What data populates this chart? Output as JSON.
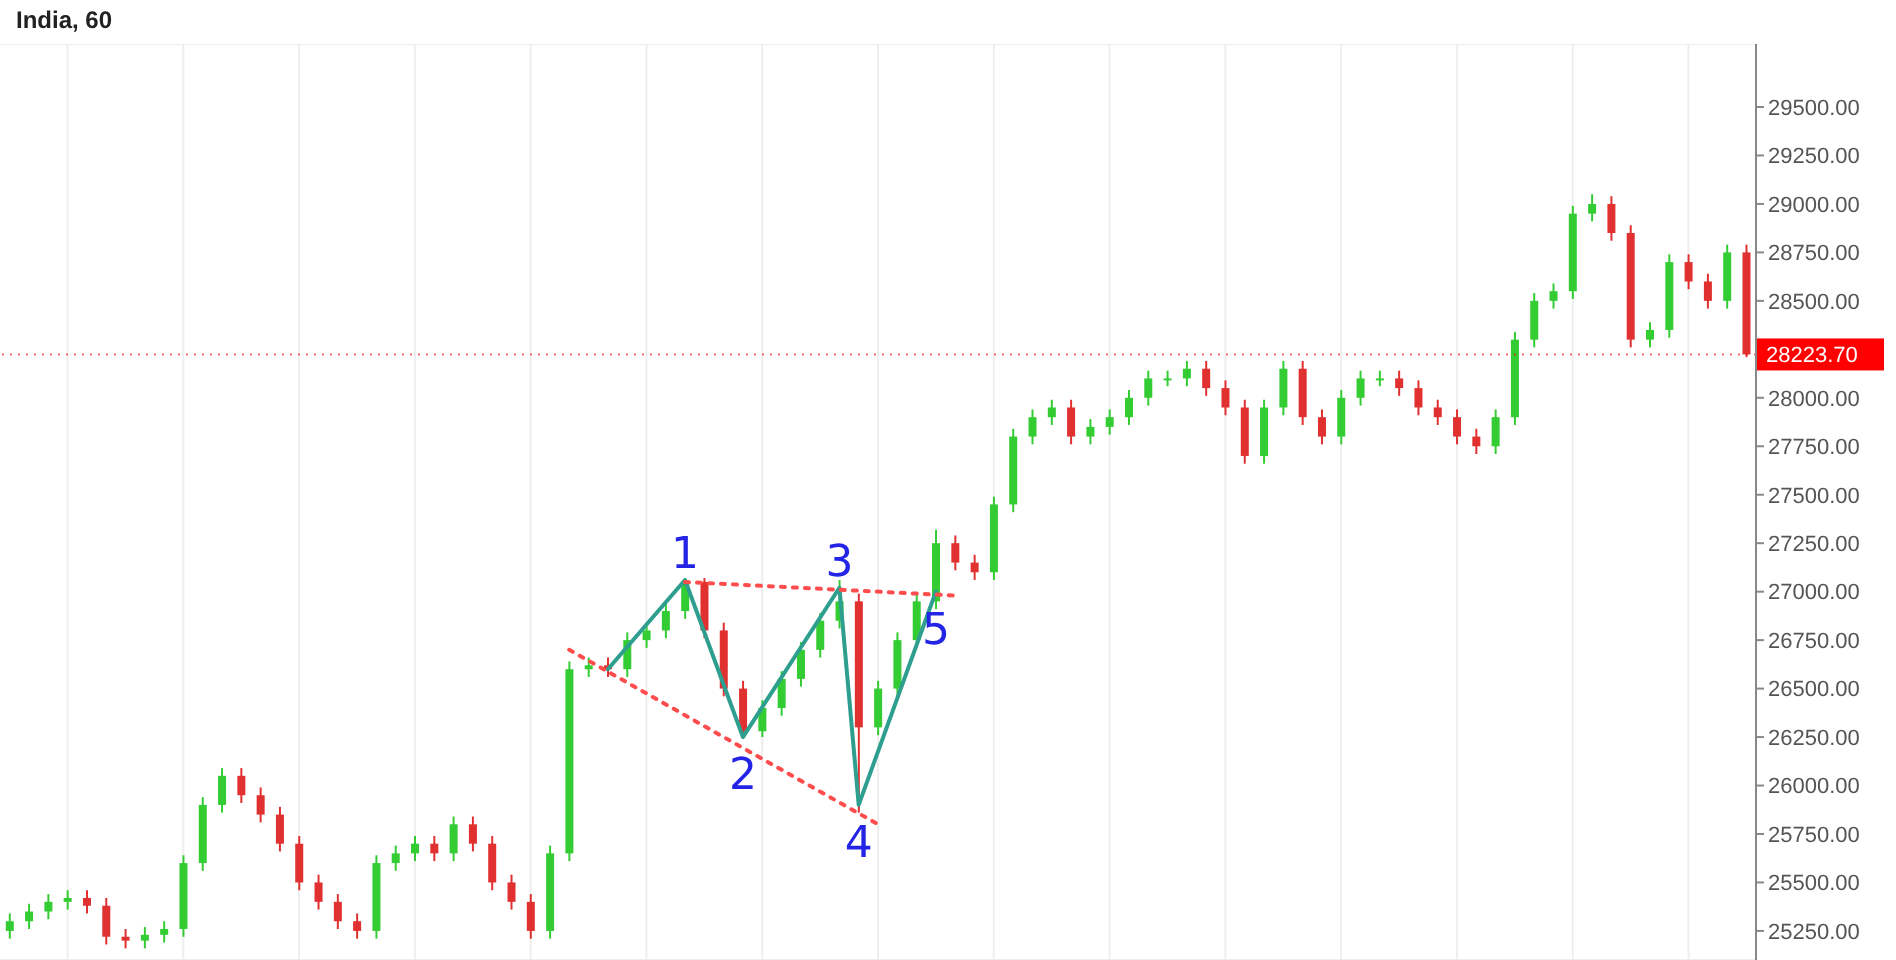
{
  "chart_data": {
    "type": "candlestick",
    "title": "India, 60",
    "categories": [
      null,
      null,
      null,
      null,
      null,
      null,
      null,
      null,
      null,
      null,
      null,
      null,
      null,
      null,
      null,
      null,
      null,
      null,
      null,
      null,
      null,
      null,
      null,
      null,
      null,
      null,
      null,
      null,
      null,
      null,
      null,
      null,
      null,
      null,
      null,
      null,
      null,
      null,
      null,
      null,
      null,
      null,
      null,
      null,
      null,
      null,
      null,
      null,
      null,
      null,
      null,
      null,
      null,
      null,
      null,
      null,
      null,
      null,
      null,
      null,
      null,
      null,
      null,
      null,
      null,
      null,
      null,
      null,
      null,
      null,
      null,
      null,
      null,
      null,
      null,
      null,
      null,
      null,
      null,
      null,
      null,
      null,
      null,
      null,
      null,
      null,
      null,
      null,
      null,
      null,
      null
    ],
    "ohlc": [
      [
        25250,
        25340,
        25210,
        25300
      ],
      [
        25300,
        25390,
        25260,
        25350
      ],
      [
        25350,
        25440,
        25310,
        25400
      ],
      [
        25400,
        25460,
        25360,
        25420
      ],
      [
        25420,
        25460,
        25340,
        25380
      ],
      [
        25380,
        25420,
        25180,
        25220
      ],
      [
        25220,
        25260,
        25160,
        25200
      ],
      [
        25200,
        25270,
        25160,
        25230
      ],
      [
        25230,
        25300,
        25190,
        25260
      ],
      [
        25260,
        25640,
        25220,
        25600
      ],
      [
        25600,
        25940,
        25560,
        25900
      ],
      [
        25900,
        26090,
        25860,
        26050
      ],
      [
        26050,
        26090,
        25910,
        25950
      ],
      [
        25950,
        25990,
        25810,
        25850
      ],
      [
        25850,
        25890,
        25660,
        25700
      ],
      [
        25700,
        25740,
        25460,
        25500
      ],
      [
        25500,
        25540,
        25360,
        25400
      ],
      [
        25400,
        25440,
        25260,
        25300
      ],
      [
        25300,
        25340,
        25210,
        25250
      ],
      [
        25250,
        25640,
        25210,
        25600
      ],
      [
        25600,
        25690,
        25560,
        25650
      ],
      [
        25650,
        25740,
        25610,
        25700
      ],
      [
        25700,
        25740,
        25610,
        25650
      ],
      [
        25650,
        25840,
        25610,
        25800
      ],
      [
        25800,
        25840,
        25660,
        25700
      ],
      [
        25700,
        25740,
        25460,
        25500
      ],
      [
        25500,
        25540,
        25360,
        25400
      ],
      [
        25400,
        25440,
        25210,
        25250
      ],
      [
        25250,
        25690,
        25210,
        25650
      ],
      [
        25650,
        26640,
        25610,
        26600
      ],
      [
        26600,
        26660,
        26560,
        26620
      ],
      [
        26620,
        26660,
        26560,
        26600
      ],
      [
        26600,
        26790,
        26560,
        26750
      ],
      [
        26750,
        26840,
        26710,
        26800
      ],
      [
        26800,
        26940,
        26760,
        26900
      ],
      [
        26900,
        27070,
        26860,
        27050
      ],
      [
        27050,
        27070,
        26760,
        26800
      ],
      [
        26800,
        26840,
        26460,
        26500
      ],
      [
        26500,
        26540,
        26250,
        26280
      ],
      [
        26280,
        26440,
        26250,
        26400
      ],
      [
        26400,
        26590,
        26360,
        26550
      ],
      [
        26550,
        26740,
        26510,
        26700
      ],
      [
        26700,
        26890,
        26660,
        26850
      ],
      [
        26850,
        27060,
        26810,
        26950
      ],
      [
        26950,
        26990,
        25860,
        26300
      ],
      [
        26300,
        26540,
        26260,
        26500
      ],
      [
        26500,
        26790,
        26460,
        26750
      ],
      [
        26750,
        26990,
        26710,
        26950
      ],
      [
        26950,
        27320,
        26910,
        27250
      ],
      [
        27250,
        27290,
        27110,
        27150
      ],
      [
        27150,
        27190,
        27060,
        27100
      ],
      [
        27100,
        27490,
        27060,
        27450
      ],
      [
        27450,
        27840,
        27410,
        27800
      ],
      [
        27800,
        27940,
        27760,
        27900
      ],
      [
        27900,
        27990,
        27860,
        27950
      ],
      [
        27950,
        27990,
        27760,
        27800
      ],
      [
        27800,
        27890,
        27760,
        27850
      ],
      [
        27850,
        27940,
        27810,
        27900
      ],
      [
        27900,
        28040,
        27860,
        28000
      ],
      [
        28000,
        28140,
        27960,
        28100
      ],
      [
        28100,
        28140,
        28060,
        28100
      ],
      [
        28100,
        28190,
        28060,
        28150
      ],
      [
        28150,
        28190,
        28010,
        28050
      ],
      [
        28050,
        28090,
        27910,
        27950
      ],
      [
        27950,
        27990,
        27660,
        27700
      ],
      [
        27700,
        27990,
        27660,
        27950
      ],
      [
        27950,
        28190,
        27910,
        28150
      ],
      [
        28150,
        28190,
        27860,
        27900
      ],
      [
        27900,
        27940,
        27760,
        27800
      ],
      [
        27800,
        28040,
        27760,
        28000
      ],
      [
        28000,
        28140,
        27960,
        28100
      ],
      [
        28100,
        28140,
        28060,
        28100
      ],
      [
        28100,
        28140,
        28010,
        28050
      ],
      [
        28050,
        28090,
        27910,
        27950
      ],
      [
        27950,
        27990,
        27860,
        27900
      ],
      [
        27900,
        27940,
        27760,
        27800
      ],
      [
        27800,
        27840,
        27710,
        27750
      ],
      [
        27750,
        27940,
        27710,
        27900
      ],
      [
        27900,
        28340,
        27860,
        28300
      ],
      [
        28300,
        28540,
        28260,
        28500
      ],
      [
        28500,
        28590,
        28460,
        28550
      ],
      [
        28550,
        28990,
        28510,
        28950
      ],
      [
        28950,
        29050,
        28910,
        29000
      ],
      [
        29000,
        29040,
        28810,
        28850
      ],
      [
        28850,
        28890,
        28260,
        28300
      ],
      [
        28300,
        28390,
        28260,
        28350
      ],
      [
        28350,
        28740,
        28310,
        28700
      ],
      [
        28700,
        28740,
        28560,
        28600
      ],
      [
        28600,
        28640,
        28460,
        28500
      ],
      [
        28500,
        28790,
        28460,
        28750
      ],
      [
        28750,
        28790,
        28210,
        28223.7
      ]
    ],
    "series": [
      {
        "type": "line",
        "color": "#2e9e8e",
        "line_style": "solid",
        "values": [
          null,
          null,
          null,
          null,
          null,
          null,
          null,
          null,
          null,
          null,
          null,
          null,
          null,
          null,
          null,
          null,
          null,
          null,
          null,
          null,
          null,
          null,
          null,
          null,
          null,
          null,
          null,
          null,
          null,
          null,
          null,
          26600,
          null,
          null,
          null,
          27060,
          null,
          null,
          26250,
          null,
          null,
          null,
          null,
          27020,
          25900,
          null,
          null,
          null,
          27000,
          null,
          null,
          null,
          null,
          null,
          null,
          null,
          null,
          null,
          null,
          null,
          null,
          null,
          null,
          null,
          null,
          null,
          null,
          null,
          null,
          null,
          null,
          null,
          null,
          null,
          null,
          null,
          null,
          null,
          null,
          null,
          null,
          null,
          null,
          null,
          null,
          null,
          null,
          null,
          null,
          null,
          null
        ],
        "name": null
      },
      {
        "type": "line",
        "color": "#ff4d4d",
        "line_style": "dotted",
        "values": [
          null,
          null,
          null,
          null,
          null,
          null,
          null,
          null,
          null,
          null,
          null,
          null,
          null,
          null,
          null,
          null,
          null,
          null,
          null,
          null,
          null,
          null,
          null,
          null,
          null,
          null,
          null,
          null,
          null,
          null,
          null,
          null,
          null,
          null,
          null,
          27050,
          null,
          null,
          null,
          null,
          null,
          null,
          null,
          null,
          null,
          null,
          null,
          null,
          null,
          26980,
          null,
          null,
          null,
          null,
          null,
          null,
          null,
          null,
          null,
          null,
          null,
          null,
          null,
          null,
          null,
          null,
          null,
          null,
          null,
          null,
          null,
          null,
          null,
          null,
          null,
          null,
          null,
          null,
          null,
          null,
          null,
          null,
          null,
          null,
          null,
          null,
          null,
          null,
          null,
          null,
          null
        ]
      },
      {
        "type": "line",
        "color": "#ff4d4d",
        "line_style": "dotted",
        "values": [
          null,
          null,
          null,
          null,
          null,
          null,
          null,
          null,
          null,
          null,
          null,
          null,
          null,
          null,
          null,
          null,
          null,
          null,
          null,
          null,
          null,
          null,
          null,
          null,
          null,
          null,
          null,
          null,
          null,
          26700,
          null,
          null,
          null,
          null,
          null,
          null,
          null,
          null,
          null,
          null,
          null,
          null,
          null,
          null,
          null,
          25800,
          null,
          null,
          null,
          null,
          null,
          null,
          null,
          null,
          null,
          null,
          null,
          null,
          null,
          null,
          null,
          null,
          null,
          null,
          null,
          null,
          null,
          null,
          null,
          null,
          null,
          null,
          null,
          null,
          null,
          null,
          null,
          null,
          null,
          null,
          null,
          null,
          null,
          null,
          null,
          null,
          null,
          null,
          null,
          null,
          null
        ]
      }
    ],
    "ylim": [
      25100,
      29825
    ],
    "yticks": [
      {
        "value": 25250,
        "label": "25250.00"
      },
      {
        "value": 25500,
        "label": "25500.00"
      },
      {
        "value": 25750,
        "label": "25750.00"
      },
      {
        "value": 26000,
        "label": "26000.00"
      },
      {
        "value": 26250,
        "label": "26250.00"
      },
      {
        "value": 26500,
        "label": "26500.00"
      },
      {
        "value": 26750,
        "label": "26750.00"
      },
      {
        "value": 27000,
        "label": "27000.00"
      },
      {
        "value": 27250,
        "label": "27250.00"
      },
      {
        "value": 27500,
        "label": "27500.00"
      },
      {
        "value": 27750,
        "label": "27750.00"
      },
      {
        "value": 28000,
        "label": "28000.00"
      },
      {
        "value": 28500,
        "label": "28500.00"
      },
      {
        "value": 28750,
        "label": "28750.00"
      },
      {
        "value": 29000,
        "label": "29000.00"
      },
      {
        "value": 29250,
        "label": "29250.00"
      },
      {
        "value": 29500,
        "label": "29500.00"
      }
    ],
    "ref_lines": [
      {
        "axis": "y",
        "value": 28223.7,
        "label": "28223.70",
        "color": "#ff0000"
      }
    ],
    "annotations": [
      {
        "text": "1",
        "y": 27060
      },
      {
        "text": "2",
        "y": 26250
      },
      {
        "text": "3",
        "y": 27020
      },
      {
        "text": "4",
        "y": 25900
      },
      {
        "text": "5",
        "y": 27000
      }
    ],
    "grid": true,
    "tick_labels": "y"
  }
}
